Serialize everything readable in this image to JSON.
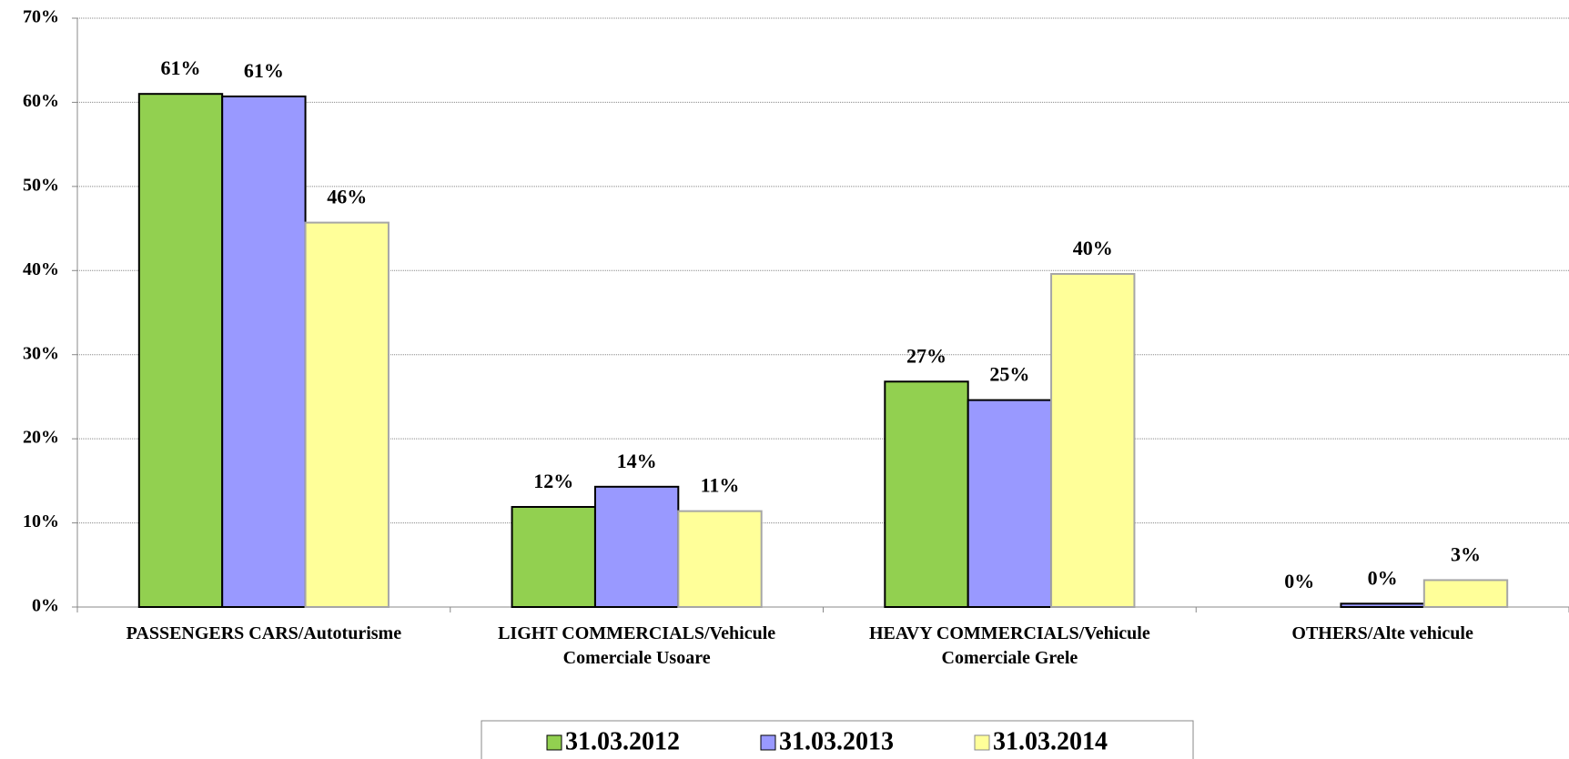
{
  "chart_data": {
    "type": "bar",
    "categories": [
      "PASSENGERS CARS/Autoturisme",
      "LIGHT COMMERCIALS/Vehicule Comerciale Usoare",
      "HEAVY COMMERCIALS/Vehicule Comerciale Grele",
      "OTHERS/Alte vehicule"
    ],
    "series": [
      {
        "name": "31.03.2012",
        "color": "#92d050",
        "values": [
          61,
          11.9,
          26.8,
          0
        ],
        "value_labels": [
          "61%",
          "12%",
          "27%",
          "0%"
        ]
      },
      {
        "name": "31.03.2013",
        "color": "#9999ff",
        "values": [
          60.7,
          14.3,
          24.6,
          0.4
        ],
        "value_labels": [
          "61%",
          "14%",
          "25%",
          "0%"
        ]
      },
      {
        "name": "31.03.2014",
        "color": "#ffff99",
        "values": [
          45.7,
          11.4,
          39.6,
          3.2
        ],
        "value_labels": [
          "46%",
          "11%",
          "40%",
          "3%"
        ]
      }
    ],
    "ylim": [
      0,
      70
    ],
    "yticks": [
      {
        "value": 0,
        "label": "0%"
      },
      {
        "value": 10,
        "label": "10%"
      },
      {
        "value": 20,
        "label": "20%"
      },
      {
        "value": 30,
        "label": "30%"
      },
      {
        "value": 40,
        "label": "40%"
      },
      {
        "value": 50,
        "label": "50%"
      },
      {
        "value": 60,
        "label": "60%"
      },
      {
        "value": 70,
        "label": "70%"
      }
    ],
    "grid": true,
    "legend": "bottom"
  }
}
